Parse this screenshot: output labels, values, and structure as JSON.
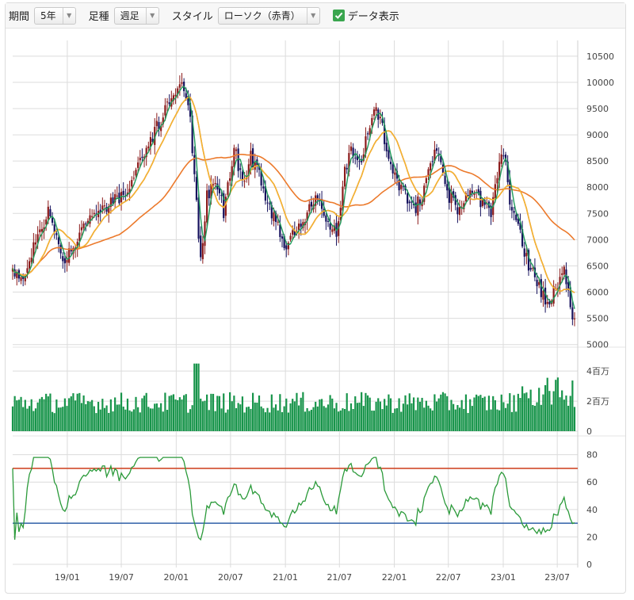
{
  "toolbar": {
    "period_label": "期間",
    "period_value": "5年",
    "interval_label": "足種",
    "interval_value": "週足",
    "style_label": "スタイル",
    "style_value": "ローソク（赤青）",
    "show_data_label": "データ表示",
    "show_data_checked": true
  },
  "colors": {
    "up": "#8b1a1a",
    "down": "#16125e",
    "ma_short": "#1f9a5b",
    "ma_mid": "#f2b630",
    "ma_long": "#ec7a2c",
    "volume": "#17944a",
    "rsi": "#2b9a3a",
    "rsi_upper": "#d04a2a",
    "rsi_lower": "#2f5fa8",
    "grid": "#dcdcdc"
  },
  "chart_data": [
    {
      "type": "line",
      "panel": "price",
      "y_ticks": [
        "10500",
        "10000",
        "9500",
        "9000",
        "8500",
        "8000",
        "7500",
        "7000",
        "6500",
        "6000",
        "5500",
        "5000"
      ],
      "ylim": [
        4950,
        10800
      ],
      "x_ticks": [
        "19/01",
        "19/07",
        "20/01",
        "20/07",
        "21/01",
        "21/07",
        "22/01",
        "22/07",
        "23/01",
        "23/07"
      ],
      "keyframes": [
        [
          "2018-07-02",
          6350
        ],
        [
          "2018-08-06",
          6300
        ],
        [
          "2018-09-24",
          7150
        ],
        [
          "2018-10-29",
          7500
        ],
        [
          "2018-12-24",
          6550
        ],
        [
          "2019-02-04",
          7000
        ],
        [
          "2019-03-11",
          7350
        ],
        [
          "2019-04-22",
          7500
        ],
        [
          "2019-06-10",
          7750
        ],
        [
          "2019-07-22",
          7950
        ],
        [
          "2019-09-02",
          8450
        ],
        [
          "2019-10-28",
          9150
        ],
        [
          "2019-12-02",
          9500
        ],
        [
          "2020-01-06",
          9800
        ],
        [
          "2020-01-27",
          9900
        ],
        [
          "2020-02-17",
          9300
        ],
        [
          "2020-03-09",
          7700
        ],
        [
          "2020-03-23",
          6600
        ],
        [
          "2020-04-13",
          7800
        ],
        [
          "2020-05-11",
          8200
        ],
        [
          "2020-06-08",
          7550
        ],
        [
          "2020-07-13",
          8750
        ],
        [
          "2020-08-10",
          8100
        ],
        [
          "2020-09-07",
          8600
        ],
        [
          "2020-10-05",
          8200
        ],
        [
          "2020-10-26",
          7800
        ],
        [
          "2020-11-30",
          7300
        ],
        [
          "2021-01-04",
          6900
        ],
        [
          "2021-02-15",
          7300
        ],
        [
          "2021-03-29",
          7650
        ],
        [
          "2021-04-26",
          7800
        ],
        [
          "2021-05-17",
          7400
        ],
        [
          "2021-06-21",
          7100
        ],
        [
          "2021-07-19",
          8300
        ],
        [
          "2021-08-09",
          8650
        ],
        [
          "2021-09-06",
          8350
        ],
        [
          "2021-10-04",
          9050
        ],
        [
          "2021-10-25",
          9600
        ],
        [
          "2021-11-22",
          9100
        ],
        [
          "2021-12-13",
          8600
        ],
        [
          "2022-01-10",
          8100
        ],
        [
          "2022-01-31",
          7900
        ],
        [
          "2022-03-07",
          7550
        ],
        [
          "2022-04-11",
          7900
        ],
        [
          "2022-05-02",
          8500
        ],
        [
          "2022-05-30",
          8700
        ],
        [
          "2022-06-27",
          7900
        ],
        [
          "2022-08-01",
          7600
        ],
        [
          "2022-09-12",
          8000
        ],
        [
          "2022-10-17",
          7700
        ],
        [
          "2022-11-21",
          7500
        ],
        [
          "2022-12-12",
          8250
        ],
        [
          "2023-01-02",
          8650
        ],
        [
          "2023-01-23",
          7800
        ],
        [
          "2023-02-20",
          7200
        ],
        [
          "2023-03-27",
          6500
        ],
        [
          "2023-04-24",
          6200
        ],
        [
          "2023-05-29",
          5700
        ],
        [
          "2023-06-19",
          6050
        ],
        [
          "2023-07-24",
          6400
        ],
        [
          "2023-08-07",
          6100
        ],
        [
          "2023-08-21",
          5450
        ],
        [
          "2023-08-28",
          5400
        ]
      ]
    },
    {
      "type": "bar",
      "panel": "volume",
      "y_ticks": [
        "4百万",
        "2百万",
        "0"
      ],
      "ylim": [
        0,
        4800000
      ]
    },
    {
      "type": "line",
      "panel": "rsi",
      "y_ticks": [
        "80",
        "60",
        "40",
        "20",
        "0"
      ],
      "ylim": [
        0,
        85
      ],
      "upper_line": 70,
      "lower_line": 30
    }
  ]
}
